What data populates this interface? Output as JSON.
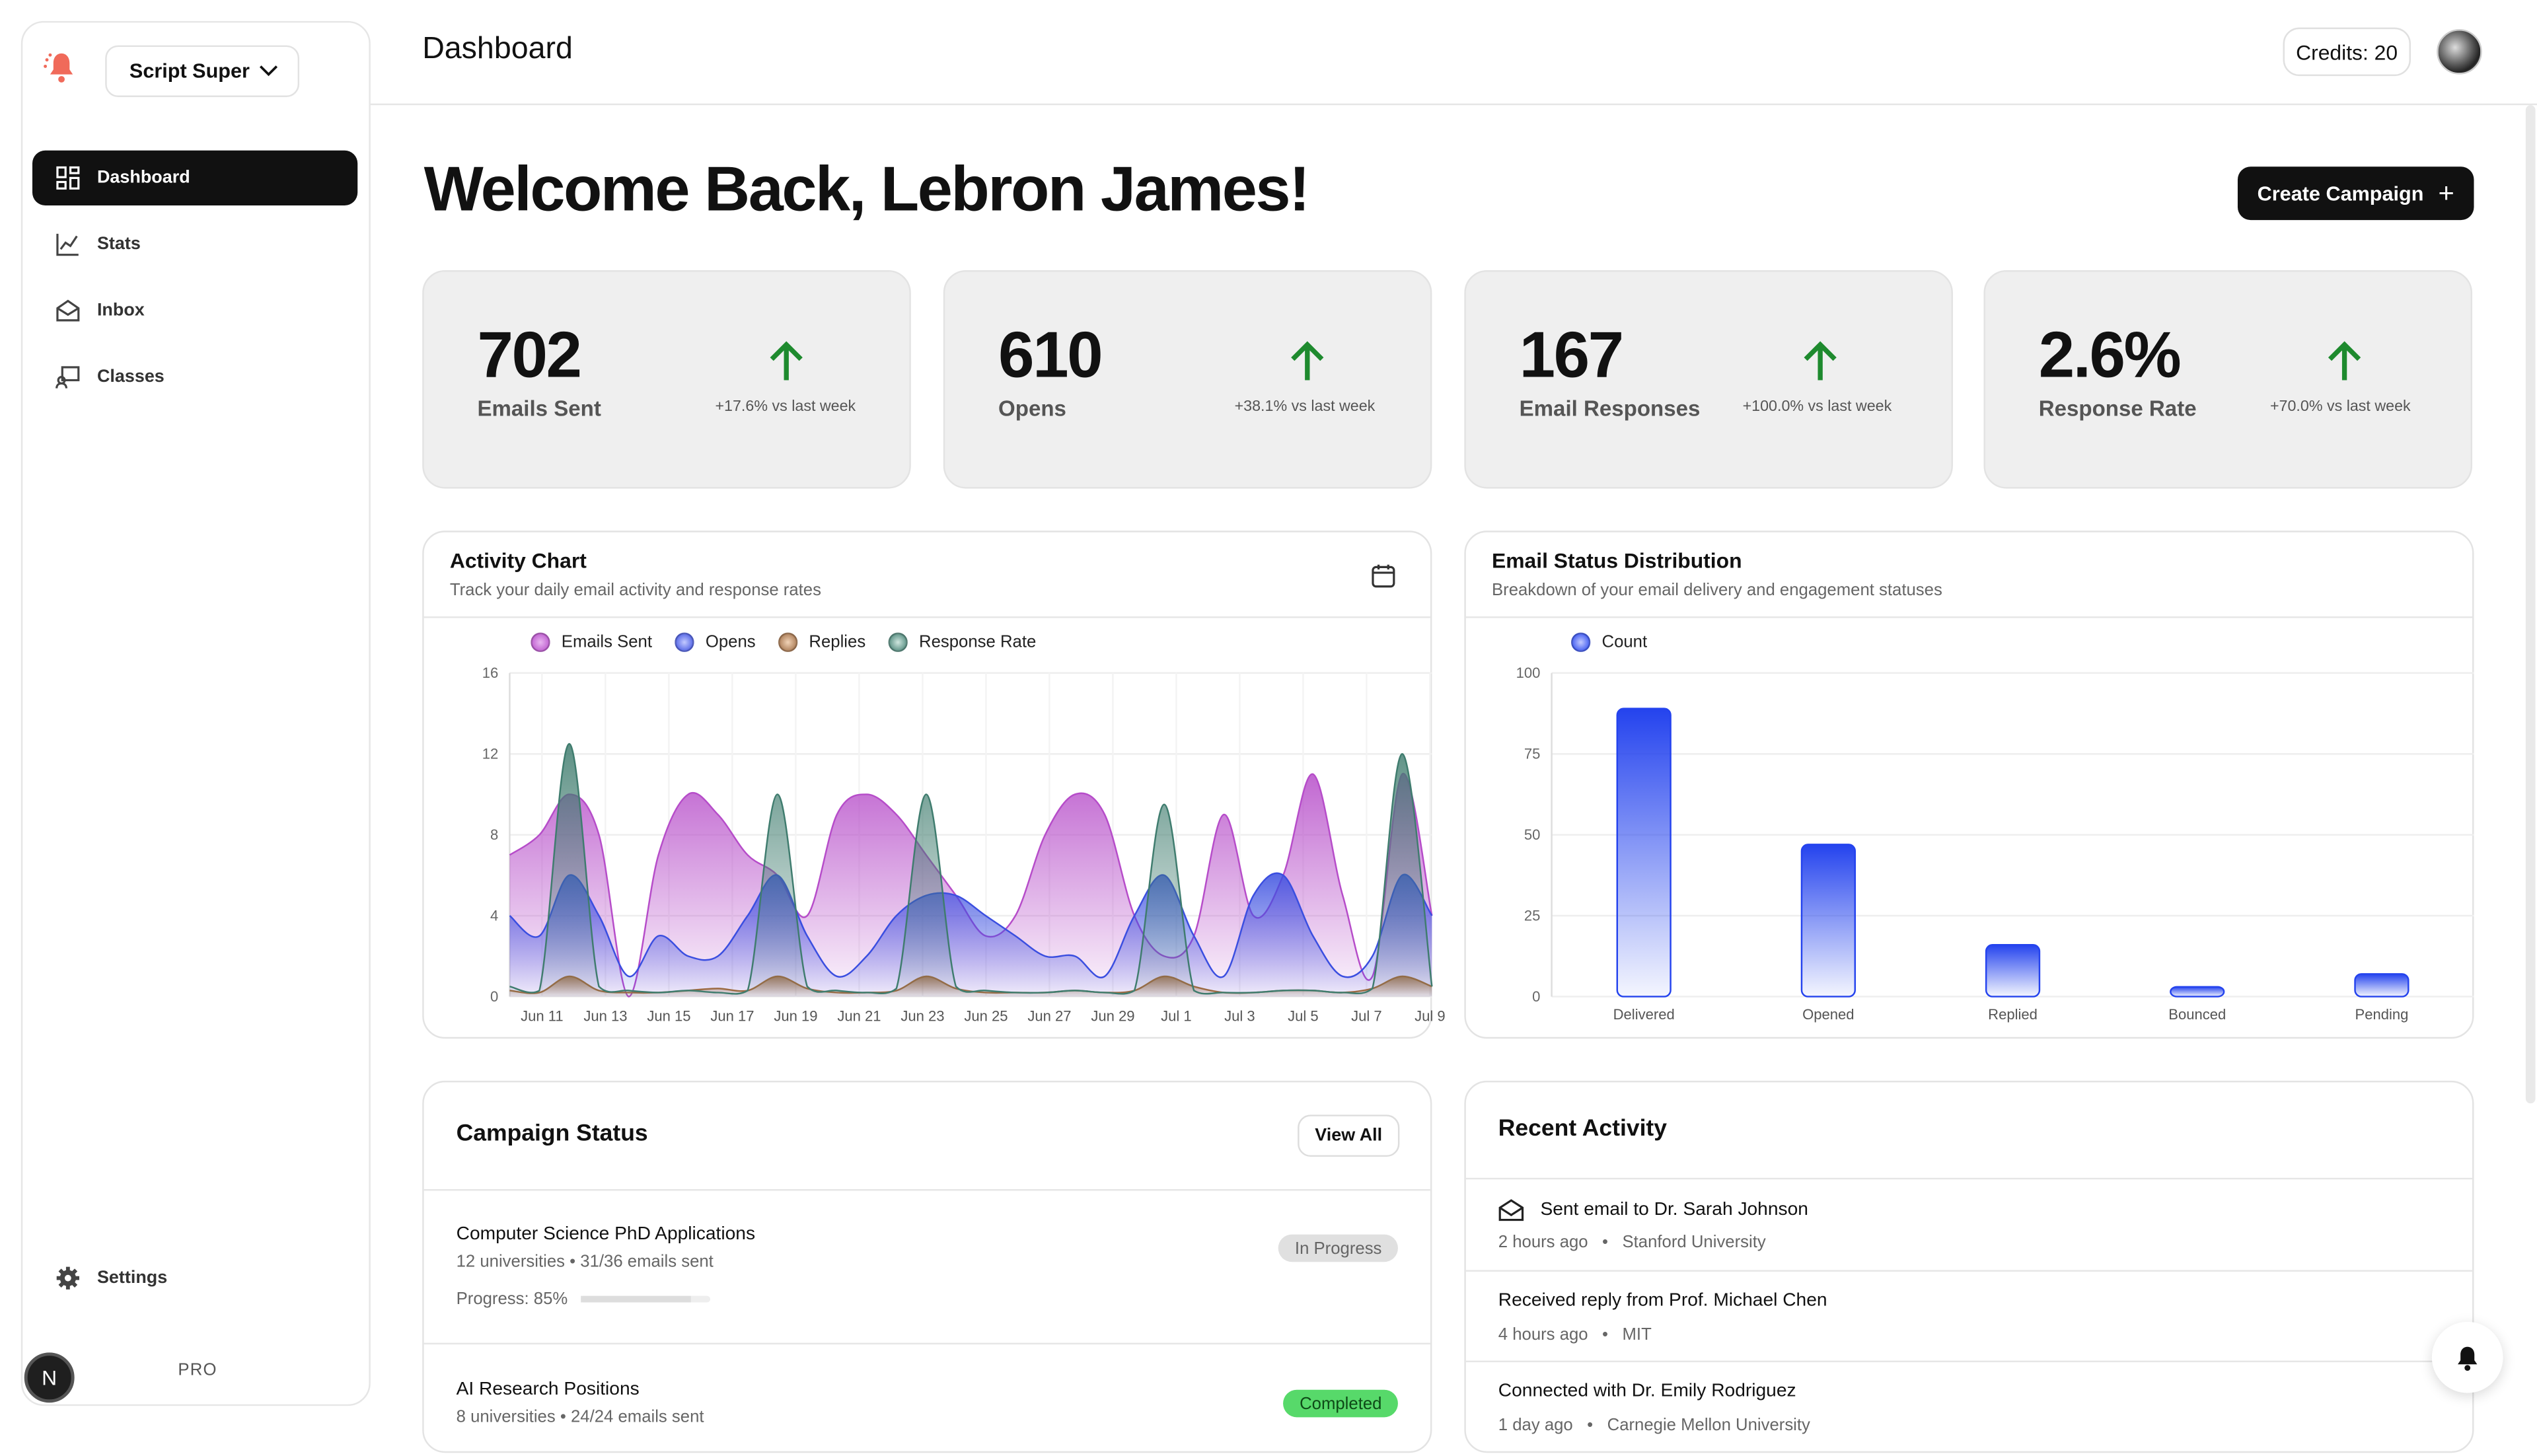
{
  "app": {
    "workspace_name": "Script Super",
    "plan": "PRO",
    "user_initial": "N"
  },
  "sidebar": {
    "items": [
      {
        "label": "Dashboard",
        "icon": "dashboard-grid-icon",
        "active": true
      },
      {
        "label": "Stats",
        "icon": "line-chart-icon",
        "active": false
      },
      {
        "label": "Inbox",
        "icon": "inbox-icon",
        "active": false
      },
      {
        "label": "Classes",
        "icon": "classes-icon",
        "active": false
      }
    ],
    "settings_label": "Settings"
  },
  "header": {
    "title": "Dashboard",
    "credits": "Credits: 20"
  },
  "main": {
    "welcome": "Welcome Back, Lebron James!",
    "create_button": "Create Campaign",
    "stats": [
      {
        "value": "702",
        "label": "Emails Sent",
        "change": "+17.6% vs last week"
      },
      {
        "value": "610",
        "label": "Opens",
        "change": "+38.1% vs last week"
      },
      {
        "value": "167",
        "label": "Email Responses",
        "change": "+100.0% vs last week"
      },
      {
        "value": "2.6%",
        "label": "Response Rate",
        "change": "+70.0% vs last week"
      }
    ]
  },
  "activity_chart": {
    "title": "Activity Chart",
    "subtitle": "Track your daily email activity and response rates"
  },
  "status_chart": {
    "title": "Email Status Distribution",
    "subtitle": "Breakdown of your email delivery and engagement statuses"
  },
  "chart_data": [
    {
      "type": "area",
      "title": "Activity Chart",
      "x_ticks": [
        "Jun 11",
        "Jun 13",
        "Jun 15",
        "Jun 17",
        "Jun 19",
        "Jun 21",
        "Jun 23",
        "Jun 25",
        "Jun 27",
        "Jun 29",
        "Jul 1",
        "Jul 3",
        "Jul 5",
        "Jul 7",
        "Jul 9"
      ],
      "ylim": [
        0,
        16
      ],
      "y_ticks": [
        0,
        4,
        8,
        12,
        16
      ],
      "series": [
        {
          "name": "Emails Sent",
          "color": "#b64cc9",
          "values": [
            7,
            8,
            10,
            8,
            0,
            7,
            10,
            9,
            7,
            6,
            4,
            9,
            10,
            9,
            7,
            5,
            3,
            4,
            8,
            10,
            9,
            4,
            2,
            3,
            9,
            4,
            6,
            11,
            5,
            1,
            11,
            4
          ]
        },
        {
          "name": "Opens",
          "color": "#3a4ee0",
          "values": [
            4,
            3,
            6,
            4,
            1,
            3,
            2,
            2,
            4,
            6,
            3,
            1,
            2,
            4,
            5,
            5,
            4,
            3,
            2,
            2,
            1,
            4,
            6,
            3,
            1,
            5,
            6,
            3,
            1,
            2,
            6,
            4
          ]
        },
        {
          "name": "Replies",
          "color": "#9c6a42",
          "values": [
            0.3,
            0.2,
            1,
            0.3,
            0.2,
            0.2,
            0.3,
            0.4,
            0.3,
            1,
            0.4,
            0.2,
            0.2,
            0.3,
            1,
            0.4,
            0.2,
            0.2,
            0.2,
            0.3,
            0.2,
            0.3,
            1,
            0.5,
            0.2,
            0.2,
            0.3,
            0.3,
            0.2,
            0.4,
            1,
            0.5
          ]
        },
        {
          "name": "Response Rate",
          "color": "#3f7c6e",
          "values": [
            0.5,
            0.3,
            12.5,
            0.5,
            0.3,
            0.2,
            0.3,
            0.2,
            0.3,
            10,
            0.5,
            0.3,
            0.2,
            0.4,
            10,
            0.5,
            0.3,
            0.2,
            0.2,
            0.3,
            0.2,
            0.3,
            9.5,
            0.3,
            0.2,
            0.2,
            0.3,
            0.3,
            0.2,
            0.4,
            12,
            0.5
          ]
        }
      ]
    },
    {
      "type": "bar",
      "title": "Email Status Distribution",
      "categories": [
        "Delivered",
        "Opened",
        "Replied",
        "Bounced",
        "Pending"
      ],
      "series": [
        {
          "name": "Count",
          "color": "#2443ee",
          "values": [
            89,
            47,
            16,
            3,
            7
          ]
        }
      ],
      "ylim": [
        0,
        100
      ],
      "y_ticks": [
        0,
        25,
        50,
        75,
        100
      ]
    }
  ],
  "campaigns": {
    "title": "Campaign Status",
    "view_all": "View All",
    "items": [
      {
        "name": "Computer Science PhD Applications",
        "meta": "12 universities • 31/36 emails sent",
        "status": "In Progress",
        "progress_label": "Progress: 85%",
        "progress": 0.85
      },
      {
        "name": "AI Research Positions",
        "meta": "8 universities • 24/24 emails sent",
        "status": "Completed"
      }
    ]
  },
  "activity": {
    "title": "Recent Activity",
    "items": [
      {
        "text": "Sent email to Dr. Sarah Johnson",
        "time": "2 hours ago",
        "org": "Stanford University",
        "icon": "mail-open-icon"
      },
      {
        "text": "Received reply from Prof. Michael Chen",
        "time": "4 hours ago",
        "org": "MIT"
      },
      {
        "text": "Connected with Dr. Emily Rodriguez",
        "time": "1 day ago",
        "org": "Carnegie Mellon University"
      }
    ]
  }
}
